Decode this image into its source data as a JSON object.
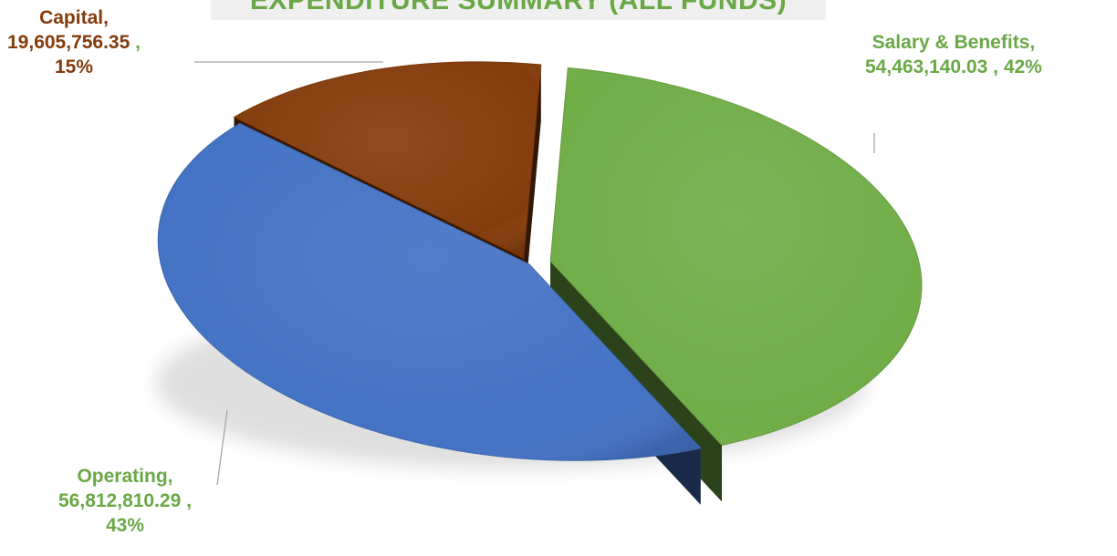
{
  "chart_data": {
    "type": "pie",
    "title": "EXPENDITURE SUMMARY (ALL FUNDS)",
    "slices": [
      {
        "name": "Salary & Benefits",
        "value": 54463140.03,
        "value_label": "54,463,140.03",
        "percent_label": "42%",
        "color": "#70ad47"
      },
      {
        "name": "Operating",
        "value": 56812810.29,
        "value_label": "56,812,810.29",
        "percent_label": "43%",
        "color": "#4472c4"
      },
      {
        "name": "Capital",
        "value": 19605756.35,
        "value_label": "19,605,756.35",
        "percent_label": "15%",
        "color": "#843c0c"
      }
    ],
    "colors": {
      "title": "#6aa846",
      "title_background": "#efefef"
    },
    "legend": "none",
    "style": "3d-exploded"
  }
}
